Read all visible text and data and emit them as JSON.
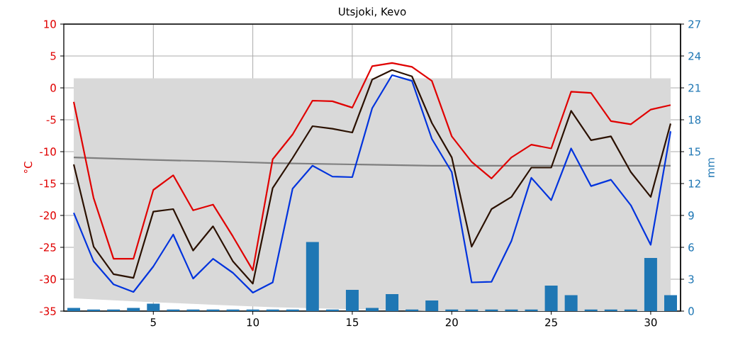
{
  "chart_data": {
    "type": "line",
    "title": "Utsjoki, Kevo",
    "ylabel": "°C",
    "y2label": "mm",
    "x": [
      1,
      2,
      3,
      4,
      5,
      6,
      7,
      8,
      9,
      10,
      11,
      12,
      13,
      14,
      15,
      16,
      17,
      18,
      19,
      20,
      21,
      22,
      23,
      24,
      25,
      26,
      27,
      28,
      29,
      30,
      31
    ],
    "xlim": [
      0.5,
      31.5
    ],
    "xticks": [
      5,
      10,
      15,
      20,
      25,
      30
    ],
    "ylim": [
      -35,
      10
    ],
    "yticks": [
      -35,
      -30,
      -25,
      -20,
      -15,
      -10,
      -5,
      0,
      5,
      10
    ],
    "y2lim": [
      0,
      27
    ],
    "y2ticks": [
      0,
      3,
      6,
      9,
      12,
      15,
      18,
      21,
      24,
      27
    ],
    "grid": true,
    "series": [
      {
        "color": "#7f7f7f",
        "x": [
          1,
          5,
          8,
          11,
          15,
          19,
          31
        ],
        "values": [
          -10.9,
          -11.3,
          -11.5,
          -11.8,
          -12.0,
          -12.2,
          -12.2
        ],
        "lower": [
          -33,
          -33.6,
          -34,
          -34.4,
          -34.7,
          -35,
          -35
        ],
        "upper": [
          1.5,
          1.5,
          1.5,
          1.5,
          1.5,
          1.5,
          1.5
        ]
      },
      {
        "type": "bar",
        "axis": "y2",
        "color": "#1f77b4",
        "values": [
          0.3,
          0.15,
          0.15,
          0.3,
          0.7,
          0.15,
          0.15,
          0.15,
          0.15,
          0.15,
          0.15,
          0.15,
          6.5,
          0.15,
          2.0,
          0.3,
          1.6,
          0.15,
          1.0,
          0.15,
          0.15,
          0.15,
          0.15,
          0.15,
          2.4,
          1.5,
          0.15,
          0.15,
          0.15,
          5.0,
          1.5
        ]
      },
      {
        "color": "#e00000",
        "values": [
          -2.2,
          -17.3,
          -26.8,
          -26.8,
          -16,
          -13.7,
          -19.2,
          -18.3,
          -23.3,
          -28.6,
          -11.2,
          -7.3,
          -2,
          -2.1,
          -3.1,
          3.4,
          3.9,
          3.3,
          1.1,
          -7.6,
          -11.6,
          -14.2,
          -10.9,
          -8.9,
          -9.5,
          -0.6,
          -0.8,
          -5.2,
          -5.7,
          -3.4,
          -2.7
        ]
      },
      {
        "color": "#2b1100",
        "values": [
          -12,
          -24.9,
          -29.2,
          -29.8,
          -19.4,
          -19,
          -25.5,
          -21.7,
          -27.2,
          -30.7,
          -15.7,
          -11,
          -6,
          -6.4,
          -7,
          1.3,
          2.8,
          1.8,
          -5.5,
          -10.9,
          -24.9,
          -19,
          -17.1,
          -12.5,
          -12.5,
          -3.6,
          -8.2,
          -7.6,
          -13.2,
          -17.1,
          -5.6
        ]
      },
      {
        "color": "#0033dd",
        "values": [
          -19.6,
          -27.2,
          -30.8,
          -32,
          -28,
          -23,
          -29.9,
          -26.8,
          -29,
          -32.1,
          -30.5,
          -15.8,
          -12.2,
          -13.9,
          -14,
          -3.2,
          2,
          1.1,
          -8,
          -13.2,
          -30.5,
          -30.4,
          -24,
          -14.1,
          -17.6,
          -9.5,
          -15.4,
          -14.4,
          -18.4,
          -24.6,
          -6.8
        ]
      }
    ]
  }
}
